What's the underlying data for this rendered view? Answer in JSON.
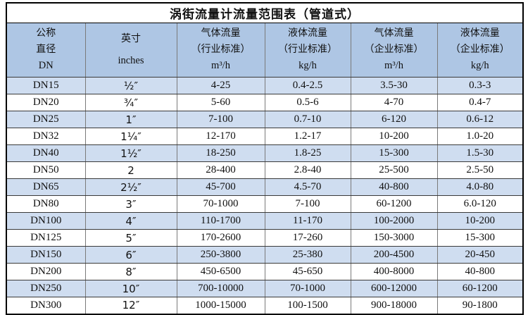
{
  "title": "涡街流量计流量范围表（管道式）",
  "header": {
    "columns": [
      {
        "lines": [
          "公称",
          "直径",
          "DN"
        ]
      },
      {
        "lines": [
          "英寸",
          "inches"
        ]
      },
      {
        "lines": [
          "气体流量",
          "（行业标准）",
          "m³/h"
        ]
      },
      {
        "lines": [
          "液体流量",
          "（行业标准）",
          "kg/h"
        ]
      },
      {
        "lines": [
          "气体流量",
          "（企业标准）",
          "m³/h"
        ]
      },
      {
        "lines": [
          "液体流量",
          "（企业标准）",
          "kg/h"
        ]
      }
    ]
  },
  "column_keys": [
    "dn",
    "inches",
    "gas-flow-industry",
    "liquid-flow-industry",
    "gas-flow-enterprise",
    "liquid-flow-enterprise"
  ],
  "rows": [
    [
      "DN15",
      "½″",
      "4-25",
      "0.4-2.5",
      "3.5-30",
      "0.3-3"
    ],
    [
      "DN20",
      "¾″",
      "5-60",
      "0.5-6",
      "4-70",
      "0.4-7"
    ],
    [
      "DN25",
      "1″",
      "7-100",
      "0.7-10",
      "6-120",
      "0.6-12"
    ],
    [
      "DN32",
      "1¼″",
      "12-170",
      "1.2-17",
      "10-200",
      "1.0-20"
    ],
    [
      "DN40",
      "1½″",
      "18-250",
      "1.8-25",
      "15-300",
      "1.5-30"
    ],
    [
      "DN50",
      "2",
      "28-400",
      "2.8-40",
      "25-500",
      "2.5-50"
    ],
    [
      "DN65",
      "2½″",
      "45-700",
      "4.5-70",
      "40-800",
      "4.0-80"
    ],
    [
      "DN80",
      "3″",
      "70-1000",
      "7-100",
      "60-1200",
      "6.0-120"
    ],
    [
      "DN100",
      "4″",
      "110-1700",
      "11-170",
      "100-2000",
      "10-200"
    ],
    [
      "DN125",
      "5″",
      "170-2600",
      "17-260",
      "150-3000",
      "15-300"
    ],
    [
      "DN150",
      "6″",
      "250-3800",
      "25-380",
      "200-4500",
      "20-450"
    ],
    [
      "DN200",
      "8″",
      "450-6500",
      "45-650",
      "400-8000",
      "40-800"
    ],
    [
      "DN250",
      "10″",
      "700-10000",
      "70-1000",
      "600-12000",
      "60-1200"
    ],
    [
      "DN300",
      "12″",
      "1000-15000",
      "100-1500",
      "900-18000",
      "90-1800"
    ]
  ],
  "colors": {
    "header_bg": "#aec6e4",
    "stripe_bg": "#cfddf0",
    "row_bg": "#ffffff",
    "text": "#111111",
    "border_outer": "#000000",
    "border_vertical": "#7a7a7a",
    "border_horizontal": "#3a3a3a"
  }
}
